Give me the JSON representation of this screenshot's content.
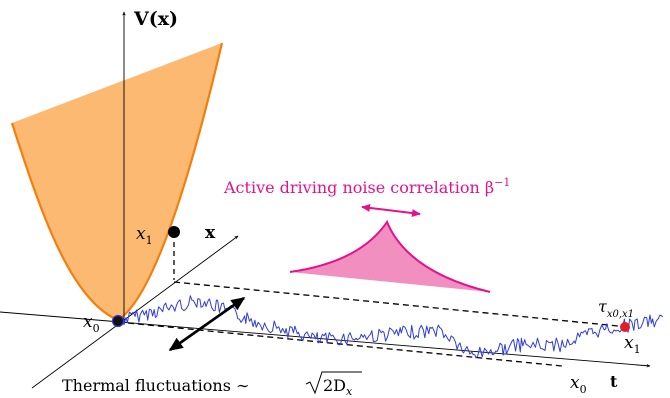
{
  "potential_axis_label": "V(x)",
  "x_axis_label": "x",
  "t_axis_label": "t",
  "x0_left": "x",
  "x0_left_sub": "0",
  "x0_bottom": "x",
  "x0_bottom_sub": "0",
  "x1_point": "x",
  "x1_point_sub": "1",
  "x1_end": "x",
  "x1_end_sub": "1",
  "tau_label": "τ",
  "tau_sub": "x0,x1",
  "active_noise_label": "Active driving noise correlation β",
  "active_noise_sup": "−1",
  "thermal_label": "Thermal fluctuations ∼ ",
  "thermal_sqrt_term": "2D",
  "thermal_sqrt_sub": "x",
  "colors": {
    "potential_fill": "#fbb972",
    "potential_edge": "#f57e0b",
    "noise_curve": "#e5118c",
    "noise_fill": "#f08fc0",
    "trajectory": "#2e3cdc",
    "end_point": "#e11d2a",
    "axes": "#000000"
  },
  "icons": [
    "thermal-double-arrow-icon",
    "noise-double-arrow-icon"
  ]
}
